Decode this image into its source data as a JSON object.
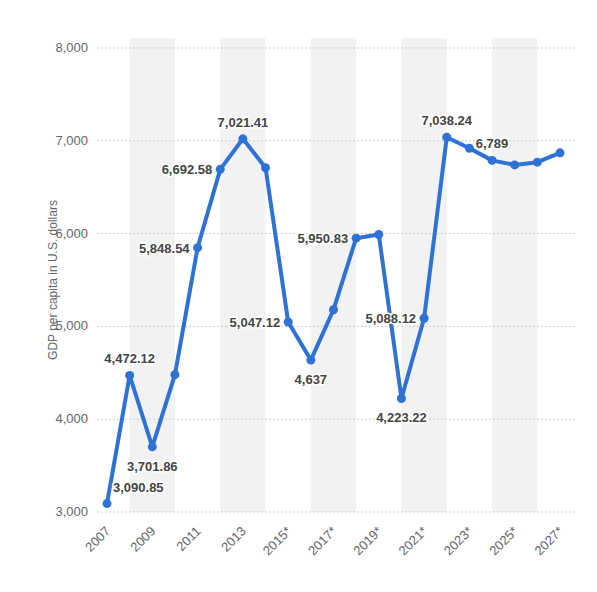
{
  "chart_data": {
    "type": "line",
    "ylabel": "GDP per capita in U.S. dollars",
    "categories": [
      "2007",
      null,
      "2009",
      null,
      "2011",
      null,
      "2013",
      null,
      "2015*",
      null,
      "2017*",
      null,
      "2019*",
      null,
      "2021*",
      null,
      "2023*",
      null,
      "2025*",
      null,
      "2027*"
    ],
    "values": [
      3090.85,
      4472.12,
      3701.86,
      4480,
      5848.54,
      6692.58,
      7021.41,
      6710,
      5047.12,
      4637,
      5180,
      5950.83,
      5990,
      4223.22,
      5088.12,
      7038.24,
      6920,
      6789,
      6740,
      6770,
      6870
    ],
    "value_labels": [
      "3,090.85",
      "4,472.12",
      "3,701.86",
      null,
      "5,848.54",
      "6,692.58",
      "7,021.41",
      null,
      "5,047.12",
      "4,637",
      null,
      "5,950.83",
      null,
      "4,223.22",
      "5,088.12",
      "7,038.24",
      null,
      "6,789",
      null,
      null,
      null
    ],
    "color": "#2f72d6",
    "marker": "circle",
    "ylim": [
      3000,
      8000
    ],
    "yticks": [
      {
        "value": 3000,
        "label": "3,000"
      },
      {
        "value": 4000,
        "label": "4,000"
      },
      {
        "value": 5000,
        "label": "5,000"
      },
      {
        "value": 6000,
        "label": "6,000"
      },
      {
        "value": 7000,
        "label": "7,000"
      },
      {
        "value": 8000,
        "label": "8,000"
      }
    ],
    "grid": true,
    "data_labels": true
  }
}
